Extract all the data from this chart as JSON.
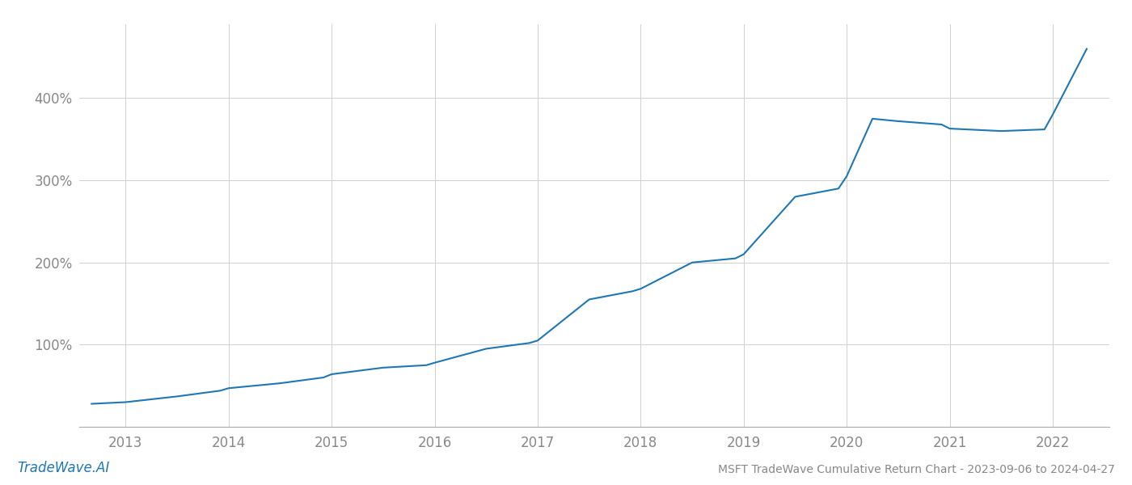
{
  "title": "MSFT TradeWave Cumulative Return Chart - 2023-09-06 to 2024-04-27",
  "watermark": "TradeWave.AI",
  "line_color": "#1f77b4",
  "background_color": "#ffffff",
  "grid_color": "#d0d0d0",
  "x_years": [
    2013,
    2014,
    2015,
    2016,
    2017,
    2018,
    2019,
    2020,
    2021,
    2022
  ],
  "x_data": [
    2012.67,
    2013.0,
    2013.5,
    2013.92,
    2014.0,
    2014.5,
    2014.92,
    2015.0,
    2015.5,
    2015.92,
    2016.0,
    2016.5,
    2016.92,
    2017.0,
    2017.5,
    2017.92,
    2018.0,
    2018.5,
    2018.92,
    2019.0,
    2019.5,
    2019.92,
    2020.0,
    2020.25,
    2020.5,
    2020.92,
    2021.0,
    2021.5,
    2021.92,
    2022.0,
    2022.33
  ],
  "y_data": [
    28,
    30,
    37,
    44,
    47,
    53,
    60,
    64,
    72,
    75,
    78,
    95,
    102,
    105,
    155,
    165,
    168,
    200,
    205,
    210,
    280,
    290,
    305,
    375,
    372,
    368,
    363,
    360,
    362,
    380,
    460
  ],
  "yticks": [
    100,
    200,
    300,
    400
  ],
  "ytick_labels": [
    "100%",
    "200%",
    "300%",
    "400%"
  ],
  "ylim": [
    0,
    490
  ],
  "xlim": [
    2012.55,
    2022.55
  ],
  "title_fontsize": 10,
  "tick_fontsize": 12,
  "watermark_fontsize": 12,
  "axis_color": "#aaaaaa",
  "tick_color": "#888888"
}
